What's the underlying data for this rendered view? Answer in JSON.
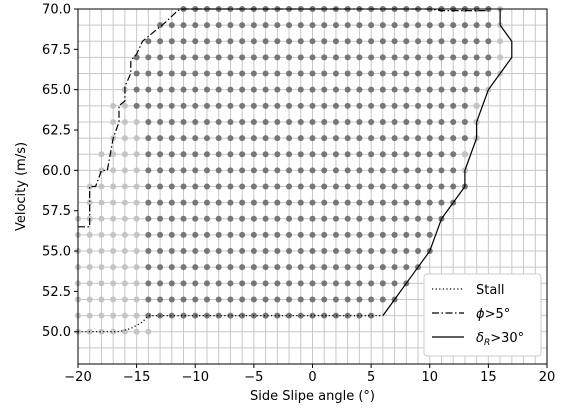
{
  "chart_data": {
    "type": "scatter",
    "title": "",
    "xlabel": "Side Slipe angle (°)",
    "ylabel": "Velocity (m/s)",
    "xlim": [
      -20,
      20
    ],
    "ylim": [
      48.0,
      70.0
    ],
    "x_ticks": [
      -20,
      -15,
      -10,
      -5,
      0,
      5,
      10,
      15,
      20
    ],
    "y_ticks": [
      50.0,
      52.5,
      55.0,
      57.5,
      60.0,
      62.5,
      65.0,
      67.5,
      70.0
    ],
    "x_tick_labels": [
      "−20",
      "−15",
      "−10",
      "−5",
      "0",
      "5",
      "10",
      "15",
      "20"
    ],
    "y_tick_labels": [
      "50.0",
      "52.5",
      "55.0",
      "57.5",
      "60.0",
      "62.5",
      "65.0",
      "67.5",
      "70.0"
    ],
    "grid": true,
    "grid_step": {
      "x": 1,
      "y": 1
    },
    "legend_position": "bottom-right",
    "colors": {
      "feasible_point": "#777777",
      "marginal_point": "#c4c4c4",
      "grid": "#c8c8c8",
      "boundary": "#000000"
    },
    "point_grid": {
      "x_step": 1,
      "y_start": 50.0,
      "y_step": 1,
      "rows": [
        {
          "y": 50.0,
          "light": [
            -20,
            -14
          ],
          "dark": null
        },
        {
          "y": 51.0,
          "light": [
            -20,
            -15
          ],
          "dark": [
            -14,
            5
          ]
        },
        {
          "y": 52.0,
          "light": [
            -20,
            -15
          ],
          "dark": [
            -14,
            7
          ]
        },
        {
          "y": 53.0,
          "light": [
            -20,
            -15
          ],
          "dark": [
            -14,
            8
          ]
        },
        {
          "y": 54.0,
          "light": [
            -20,
            -15
          ],
          "dark": [
            -14,
            9
          ]
        },
        {
          "y": 55.0,
          "light": [
            -20,
            -15
          ],
          "dark": [
            -14,
            10
          ]
        },
        {
          "y": 56.0,
          "light": [
            -20,
            -15
          ],
          "dark": [
            -14,
            10
          ]
        },
        {
          "y": 57.0,
          "light": [
            -20,
            -15
          ],
          "dark": [
            -14,
            11
          ]
        },
        {
          "y": 58.0,
          "light": [
            -19,
            -15
          ],
          "dark": [
            -14,
            12
          ]
        },
        {
          "y": 59.0,
          "light": [
            -19,
            -15
          ],
          "dark": [
            -14,
            13
          ]
        },
        {
          "y": 60.0,
          "light": [
            -18,
            -15
          ],
          "dark": [
            -14,
            13
          ]
        },
        {
          "y": 61.0,
          "light": [
            -18,
            -15
          ],
          "dark": [
            -14,
            13
          ]
        },
        {
          "y": 62.0,
          "light": [
            -17,
            -15
          ],
          "dark": [
            -14,
            14
          ]
        },
        {
          "y": 63.0,
          "light": [
            -17,
            -15
          ],
          "dark": [
            -14,
            14
          ]
        },
        {
          "y": 64.0,
          "light": [
            -17,
            -16
          ],
          "dark": [
            -15,
            14
          ]
        },
        {
          "y": 65.0,
          "light": [
            -16,
            -16
          ],
          "dark": [
            -15,
            14
          ]
        },
        {
          "y": 66.0,
          "light": null,
          "dark": [
            -15,
            15
          ]
        },
        {
          "y": 67.0,
          "light": null,
          "dark": [
            -15,
            15
          ]
        },
        {
          "y": 68.0,
          "light": null,
          "dark": [
            -14,
            15
          ]
        },
        {
          "y": 69.0,
          "light": null,
          "dark": [
            -13,
            15
          ]
        },
        {
          "y": 70.0,
          "light": null,
          "dark": [
            -11,
            15
          ]
        }
      ],
      "light_right_edge": [
        {
          "y": 60.0,
          "x": 13
        },
        {
          "y": 61.0,
          "x": 13
        },
        {
          "y": 62.0,
          "x": 14
        },
        {
          "y": 63.0,
          "x": 14
        },
        {
          "y": 64.0,
          "x": 14
        },
        {
          "y": 65.0,
          "x": 15
        },
        {
          "y": 66.0,
          "x": 16
        },
        {
          "y": 67.0,
          "x": 16
        },
        {
          "y": 68.0,
          "x": 16
        },
        {
          "y": 69.0,
          "x": 16
        },
        {
          "y": 70.0,
          "x": 16
        }
      ]
    },
    "series": [
      {
        "name": "Stall",
        "style": "dotted",
        "points": [
          [
            -20,
            50.0
          ],
          [
            -16.5,
            50.0
          ],
          [
            -15.5,
            50.2
          ],
          [
            -14.5,
            50.6
          ],
          [
            -14,
            51.0
          ],
          [
            -13,
            51.0
          ],
          [
            6,
            51.0
          ]
        ]
      },
      {
        "name": "ϕ>5°",
        "style": "dashdot",
        "points": [
          [
            -20,
            56.5
          ],
          [
            -19,
            56.5
          ],
          [
            -19,
            59.0
          ],
          [
            -18.5,
            59.0
          ],
          [
            -18,
            60.0
          ],
          [
            -17.5,
            60.0
          ],
          [
            -17,
            62.0
          ],
          [
            -16.5,
            63.0
          ],
          [
            -16.5,
            64.0
          ],
          [
            -16,
            64.3
          ],
          [
            -16,
            65.2
          ],
          [
            -15.5,
            66.0
          ],
          [
            -15.5,
            66.8
          ],
          [
            -15,
            67.2
          ],
          [
            -14.5,
            68.0
          ],
          [
            -13.5,
            68.6
          ],
          [
            -12.5,
            69.2
          ],
          [
            -11.5,
            69.9
          ],
          [
            -11,
            70.0
          ],
          [
            10,
            70.0
          ],
          [
            11,
            69.9
          ],
          [
            15,
            69.9
          ]
        ]
      },
      {
        "name": "δ_R>30°",
        "style": "solid",
        "points": [
          [
            6,
            51.0
          ],
          [
            7,
            52.0
          ],
          [
            8,
            53.0
          ],
          [
            9,
            54.0
          ],
          [
            10,
            55.0
          ],
          [
            11,
            57.0
          ],
          [
            12,
            58.0
          ],
          [
            13,
            59.0
          ],
          [
            13,
            60.0
          ],
          [
            14,
            62.0
          ],
          [
            14,
            63.0
          ],
          [
            14.5,
            64.0
          ],
          [
            15,
            65.0
          ],
          [
            16,
            66.0
          ],
          [
            17,
            67.0
          ],
          [
            17,
            68.0
          ],
          [
            16,
            69.0
          ],
          [
            16,
            70.0
          ]
        ]
      }
    ],
    "legend": [
      {
        "label_main": "Stall",
        "label_sub": "",
        "label_post": ""
      },
      {
        "label_main": "ϕ",
        "label_sub": "",
        "label_post": ">5°"
      },
      {
        "label_main": "δ",
        "label_sub": "R",
        "label_post": ">30°"
      }
    ]
  }
}
